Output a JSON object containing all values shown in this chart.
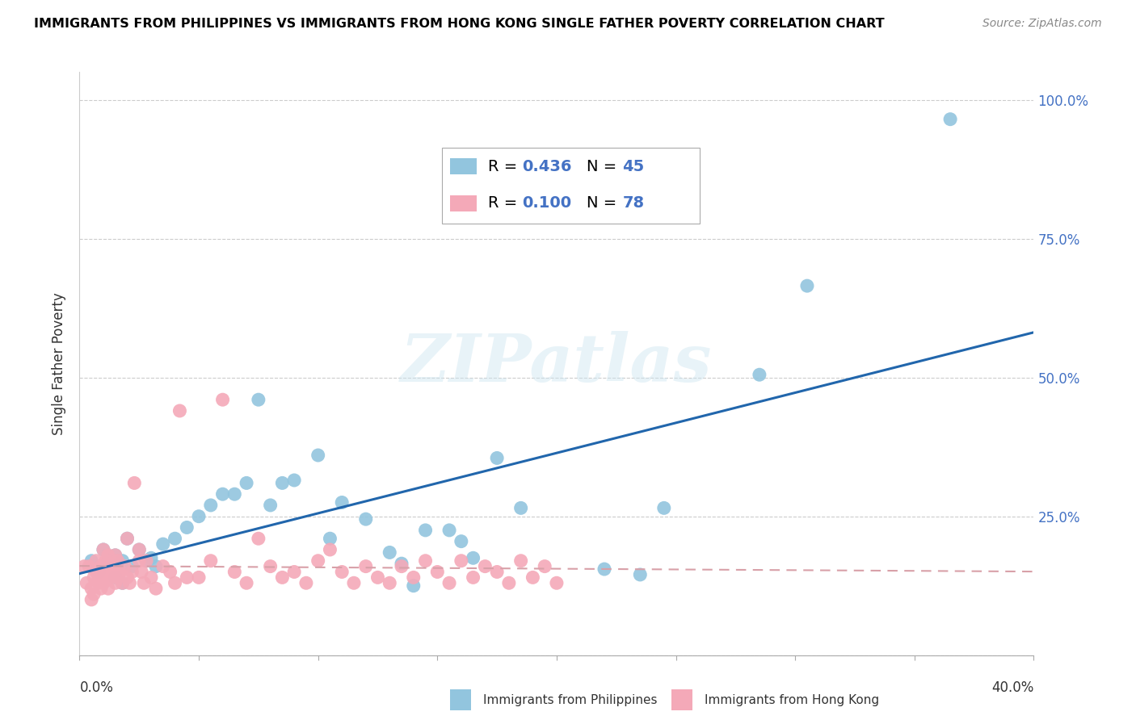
{
  "title": "IMMIGRANTS FROM PHILIPPINES VS IMMIGRANTS FROM HONG KONG SINGLE FATHER POVERTY CORRELATION CHART",
  "source": "Source: ZipAtlas.com",
  "ylabel": "Single Father Poverty",
  "legend_blue_r": "R = 0.436",
  "legend_blue_n": "N = 45",
  "legend_pink_r": "R = 0.100",
  "legend_pink_n": "N = 78",
  "legend_label_blue": "Immigrants from Philippines",
  "legend_label_pink": "Immigrants from Hong Kong",
  "blue_color": "#92c5de",
  "pink_color": "#f4a9b8",
  "regression_blue_color": "#2166ac",
  "regression_pink_color": "#d8a0a8",
  "watermark_text": "ZIPatlas",
  "blue_x": [
    0.005,
    0.008,
    0.01,
    0.012,
    0.015,
    0.015,
    0.018,
    0.018,
    0.02,
    0.022,
    0.025,
    0.028,
    0.03,
    0.032,
    0.035,
    0.04,
    0.045,
    0.05,
    0.055,
    0.06,
    0.065,
    0.07,
    0.075,
    0.08,
    0.085,
    0.09,
    0.1,
    0.105,
    0.11,
    0.12,
    0.13,
    0.135,
    0.14,
    0.145,
    0.155,
    0.16,
    0.165,
    0.175,
    0.185,
    0.22,
    0.235,
    0.245,
    0.285,
    0.305,
    0.365
  ],
  "blue_y": [
    0.17,
    0.15,
    0.19,
    0.17,
    0.14,
    0.18,
    0.13,
    0.17,
    0.21,
    0.16,
    0.19,
    0.17,
    0.175,
    0.16,
    0.2,
    0.21,
    0.23,
    0.25,
    0.27,
    0.29,
    0.29,
    0.31,
    0.46,
    0.27,
    0.31,
    0.315,
    0.36,
    0.21,
    0.275,
    0.245,
    0.185,
    0.165,
    0.125,
    0.225,
    0.225,
    0.205,
    0.175,
    0.355,
    0.265,
    0.155,
    0.145,
    0.265,
    0.505,
    0.665,
    0.965
  ],
  "pink_x": [
    0.002,
    0.003,
    0.004,
    0.005,
    0.005,
    0.006,
    0.006,
    0.007,
    0.007,
    0.008,
    0.008,
    0.009,
    0.009,
    0.01,
    0.01,
    0.01,
    0.011,
    0.011,
    0.012,
    0.012,
    0.013,
    0.013,
    0.014,
    0.015,
    0.015,
    0.016,
    0.016,
    0.017,
    0.018,
    0.019,
    0.02,
    0.02,
    0.021,
    0.022,
    0.023,
    0.025,
    0.025,
    0.026,
    0.027,
    0.028,
    0.03,
    0.032,
    0.035,
    0.038,
    0.04,
    0.042,
    0.045,
    0.05,
    0.055,
    0.06,
    0.065,
    0.07,
    0.075,
    0.08,
    0.085,
    0.09,
    0.095,
    0.1,
    0.105,
    0.11,
    0.115,
    0.12,
    0.125,
    0.13,
    0.135,
    0.14,
    0.145,
    0.15,
    0.155,
    0.16,
    0.165,
    0.17,
    0.175,
    0.18,
    0.185,
    0.19,
    0.195,
    0.2
  ],
  "pink_y": [
    0.16,
    0.13,
    0.16,
    0.1,
    0.12,
    0.14,
    0.11,
    0.17,
    0.15,
    0.13,
    0.14,
    0.16,
    0.12,
    0.15,
    0.19,
    0.13,
    0.17,
    0.14,
    0.18,
    0.12,
    0.16,
    0.14,
    0.15,
    0.13,
    0.18,
    0.14,
    0.17,
    0.15,
    0.13,
    0.16,
    0.14,
    0.21,
    0.13,
    0.15,
    0.31,
    0.17,
    0.19,
    0.15,
    0.13,
    0.17,
    0.14,
    0.12,
    0.16,
    0.15,
    0.13,
    0.44,
    0.14,
    0.14,
    0.17,
    0.46,
    0.15,
    0.13,
    0.21,
    0.16,
    0.14,
    0.15,
    0.13,
    0.17,
    0.19,
    0.15,
    0.13,
    0.16,
    0.14,
    0.13,
    0.16,
    0.14,
    0.17,
    0.15,
    0.13,
    0.17,
    0.14,
    0.16,
    0.15,
    0.13,
    0.17,
    0.14,
    0.16,
    0.13
  ]
}
